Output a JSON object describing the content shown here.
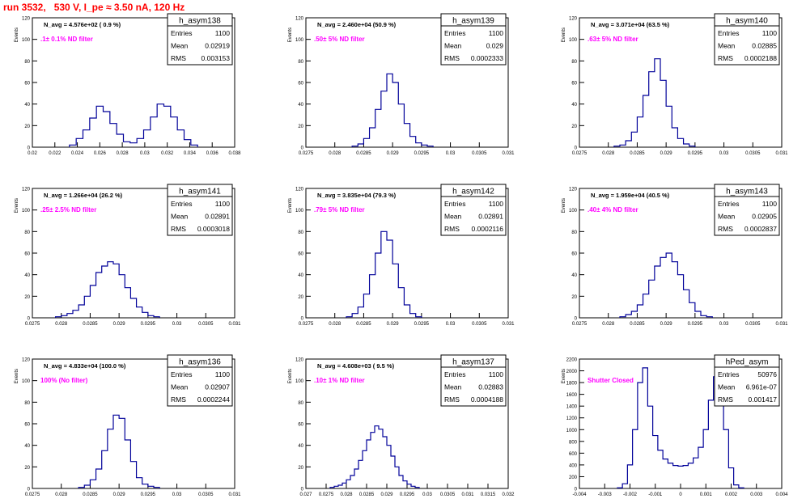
{
  "page": {
    "title": "run 3532,   530 V, I_pe ≈ 3.50 nA, 120 Hz"
  },
  "colors": {
    "title": "#ff0000",
    "annotation": "#ff00ff",
    "histogram": "#000099",
    "axis": "#000000"
  },
  "chart_data": [
    {
      "type": "histogram",
      "name": "h_asym138",
      "entries": "1100",
      "mean": "0.02919",
      "rms": "0.003153",
      "navg": "N_avg = 4.576e+02 ( 0.9 %)",
      "label": ".1± 0.1% ND filter",
      "xlim": [
        0.02,
        0.038
      ],
      "ylim": [
        0,
        120
      ],
      "ylabel": "Events",
      "xlabel": "",
      "xticks": [
        "0.02",
        "0.022",
        "0.024",
        "0.026",
        "0.028",
        "0.03",
        "0.032",
        "0.034",
        "0.036",
        "0.038"
      ],
      "yticks": [
        "0",
        "20",
        "40",
        "60",
        "80",
        "100",
        "120"
      ],
      "x": [
        0.0236,
        0.0242,
        0.0248,
        0.0254,
        0.026,
        0.0266,
        0.0272,
        0.0278,
        0.0284,
        0.029,
        0.0296,
        0.0302,
        0.0308,
        0.0314,
        0.032,
        0.0326,
        0.0332,
        0.0338,
        0.0344
      ],
      "values": [
        2,
        8,
        16,
        27,
        38,
        33,
        22,
        12,
        5,
        4,
        8,
        16,
        28,
        40,
        38,
        28,
        16,
        7,
        2
      ]
    },
    {
      "type": "histogram",
      "name": "h_asym139",
      "entries": "1100",
      "mean": "0.029",
      "rms": "0.0002333",
      "navg": "N_avg = 2.460e+04 (50.9 %)",
      "label": ".50± 5% ND filter",
      "xlim": [
        0.0275,
        0.031
      ],
      "ylim": [
        0,
        120
      ],
      "ylabel": "Events",
      "xlabel": "",
      "xticks": [
        "0.0275",
        "0.028",
        "0.0285",
        "0.029",
        "0.0295",
        "0.03",
        "0.0305",
        "0.031"
      ],
      "yticks": [
        "0",
        "20",
        "40",
        "60",
        "80",
        "100",
        "120"
      ],
      "x": [
        0.02835,
        0.02845,
        0.02855,
        0.02865,
        0.02875,
        0.02885,
        0.02895,
        0.02905,
        0.02915,
        0.02925,
        0.02935,
        0.02945,
        0.02955,
        0.02965
      ],
      "values": [
        1,
        3,
        8,
        18,
        35,
        52,
        68,
        60,
        40,
        22,
        10,
        4,
        2,
        1
      ]
    },
    {
      "type": "histogram",
      "name": "h_asym140",
      "entries": "1100",
      "mean": "0.02885",
      "rms": "0.0002188",
      "navg": "N_avg = 3.071e+04 (63.5 %)",
      "label": ".63± 5% ND filter",
      "xlim": [
        0.0275,
        0.031
      ],
      "ylim": [
        0,
        120
      ],
      "ylabel": "Events",
      "xlabel": "",
      "xticks": [
        "0.0275",
        "0.028",
        "0.0285",
        "0.029",
        "0.0295",
        "0.03",
        "0.0305",
        "0.031"
      ],
      "yticks": [
        "0",
        "20",
        "40",
        "60",
        "80",
        "100",
        "120"
      ],
      "x": [
        0.02815,
        0.02825,
        0.02835,
        0.02845,
        0.02855,
        0.02865,
        0.02875,
        0.02885,
        0.02895,
        0.02905,
        0.02915,
        0.02925,
        0.02935,
        0.02945
      ],
      "values": [
        1,
        2,
        6,
        14,
        28,
        48,
        70,
        82,
        62,
        38,
        18,
        8,
        3,
        1
      ]
    },
    {
      "type": "histogram",
      "name": "h_asym141",
      "entries": "1100",
      "mean": "0.02891",
      "rms": "0.0003018",
      "navg": "N_avg = 1.266e+04 (26.2 %)",
      "label": ".25± 2.5% ND filter",
      "xlim": [
        0.0275,
        0.031
      ],
      "ylim": [
        0,
        120
      ],
      "ylabel": "Events",
      "xlabel": "",
      "xticks": [
        "0.0275",
        "0.028",
        "0.0285",
        "0.029",
        "0.0295",
        "0.03",
        "0.0305",
        "0.031"
      ],
      "yticks": [
        "0",
        "20",
        "40",
        "60",
        "80",
        "100",
        "120"
      ],
      "x": [
        0.02795,
        0.02805,
        0.02815,
        0.02825,
        0.02835,
        0.02845,
        0.02855,
        0.02865,
        0.02875,
        0.02885,
        0.02895,
        0.02905,
        0.02915,
        0.02925,
        0.02935,
        0.02945,
        0.02955,
        0.02965
      ],
      "values": [
        1,
        2,
        4,
        7,
        12,
        20,
        30,
        42,
        48,
        52,
        50,
        40,
        28,
        18,
        10,
        5,
        2,
        1
      ]
    },
    {
      "type": "histogram",
      "name": "h_asym142",
      "entries": "1100",
      "mean": "0.02891",
      "rms": "0.0002116",
      "navg": "N_avg = 3.835e+04 (79.3 %)",
      "label": ".79± 5% ND filter",
      "xlim": [
        0.0275,
        0.031
      ],
      "ylim": [
        0,
        120
      ],
      "ylabel": "Events",
      "xlabel": "",
      "xticks": [
        "0.0275",
        "0.028",
        "0.0285",
        "0.029",
        "0.0295",
        "0.03",
        "0.0305",
        "0.031"
      ],
      "yticks": [
        "0",
        "20",
        "40",
        "60",
        "80",
        "100",
        "120"
      ],
      "x": [
        0.02825,
        0.02835,
        0.02845,
        0.02855,
        0.02865,
        0.02875,
        0.02885,
        0.02895,
        0.02905,
        0.02915,
        0.02925,
        0.02935,
        0.02945
      ],
      "values": [
        1,
        4,
        10,
        22,
        40,
        60,
        80,
        72,
        50,
        28,
        12,
        4,
        1
      ]
    },
    {
      "type": "histogram",
      "name": "h_asym143",
      "entries": "1100",
      "mean": "0.02905",
      "rms": "0.0002837",
      "navg": "N_avg = 1.959e+04 (40.5 %)",
      "label": ".40± 4% ND filter",
      "xlim": [
        0.0275,
        0.031
      ],
      "ylim": [
        0,
        120
      ],
      "ylabel": "Events",
      "xlabel": "",
      "xticks": [
        "0.0275",
        "0.028",
        "0.0285",
        "0.029",
        "0.0295",
        "0.03",
        "0.0305",
        "0.031"
      ],
      "yticks": [
        "0",
        "20",
        "40",
        "60",
        "80",
        "100",
        "120"
      ],
      "x": [
        0.02825,
        0.02835,
        0.02845,
        0.02855,
        0.02865,
        0.02875,
        0.02885,
        0.02895,
        0.02905,
        0.02915,
        0.02925,
        0.02935,
        0.02945,
        0.02955,
        0.02965,
        0.02975
      ],
      "values": [
        1,
        3,
        6,
        12,
        22,
        35,
        48,
        56,
        60,
        52,
        40,
        26,
        14,
        6,
        2,
        1
      ]
    },
    {
      "type": "histogram",
      "name": "h_asym136",
      "entries": "1100",
      "mean": "0.02907",
      "rms": "0.0002244",
      "navg": "N_avg = 4.833e+04 (100.0 %)",
      "label": "100% (No filter)",
      "xlim": [
        0.0275,
        0.031
      ],
      "ylim": [
        0,
        120
      ],
      "ylabel": "Events",
      "xlabel": "",
      "xticks": [
        "0.0275",
        "0.028",
        "0.0285",
        "0.029",
        "0.0295",
        "0.03",
        "0.0305",
        "0.031"
      ],
      "yticks": [
        "0",
        "20",
        "40",
        "60",
        "80",
        "100",
        "120"
      ],
      "x": [
        0.02835,
        0.02845,
        0.02855,
        0.02865,
        0.02875,
        0.02885,
        0.02895,
        0.02905,
        0.02915,
        0.02925,
        0.02935,
        0.02945,
        0.02955,
        0.02965
      ],
      "values": [
        1,
        3,
        8,
        18,
        35,
        55,
        68,
        65,
        45,
        25,
        10,
        4,
        2,
        1
      ]
    },
    {
      "type": "histogram",
      "name": "h_asym137",
      "entries": "1100",
      "mean": "0.02883",
      "rms": "0.0004188",
      "navg": "N_avg = 4.608e+03 ( 9.5 %)",
      "label": ".10± 1% ND filter",
      "xlim": [
        0.027,
        0.032
      ],
      "ylim": [
        0,
        120
      ],
      "ylabel": "Events",
      "xlabel": "",
      "xticks": [
        "0.027",
        "0.0275",
        "0.028",
        "0.0285",
        "0.029",
        "0.0295",
        "0.03",
        "0.0305",
        "0.031",
        "0.0315",
        "0.032"
      ],
      "yticks": [
        "0",
        "20",
        "40",
        "60",
        "80",
        "100",
        "120"
      ],
      "x": [
        0.02765,
        0.02775,
        0.02785,
        0.02795,
        0.02805,
        0.02815,
        0.02825,
        0.02835,
        0.02845,
        0.02855,
        0.02865,
        0.02875,
        0.02885,
        0.02895,
        0.02905,
        0.02915,
        0.02925,
        0.02935,
        0.02945,
        0.02955,
        0.02965,
        0.02975
      ],
      "values": [
        1,
        2,
        3,
        5,
        8,
        12,
        18,
        26,
        35,
        45,
        52,
        58,
        55,
        48,
        40,
        30,
        20,
        12,
        7,
        4,
        2,
        1
      ]
    },
    {
      "type": "histogram",
      "name": "hPed_asym",
      "entries": "50976",
      "mean": "6.961e-07",
      "rms": "0.001417",
      "navg": "",
      "label": "Shutter Closed",
      "xlim": [
        -0.004,
        0.004
      ],
      "ylim": [
        0,
        2200
      ],
      "ylabel": "Events",
      "xlabel": "",
      "xticks": [
        "-0.004",
        "-0.003",
        "-0.002",
        "-0.001",
        "0",
        "0.001",
        "0.002",
        "0.003",
        "0.004"
      ],
      "yticks": [
        "0",
        "200",
        "400",
        "600",
        "800",
        "1000",
        "1200",
        "1400",
        "1600",
        "1800",
        "2000",
        "2200"
      ],
      "x": [
        -0.0024,
        -0.0022,
        -0.002,
        -0.0018,
        -0.0016,
        -0.0014,
        -0.0012,
        -0.001,
        -0.0008,
        -0.0006,
        -0.0004,
        -0.0002,
        0,
        0.0002,
        0.0004,
        0.0006,
        0.0008,
        0.001,
        0.0012,
        0.0014,
        0.0016,
        0.0018,
        0.002,
        0.0022,
        0.0024
      ],
      "values": [
        10,
        80,
        400,
        1000,
        1800,
        2050,
        1400,
        900,
        650,
        500,
        430,
        390,
        380,
        390,
        430,
        520,
        700,
        1000,
        1500,
        1900,
        1800,
        1000,
        350,
        60,
        10
      ]
    }
  ]
}
